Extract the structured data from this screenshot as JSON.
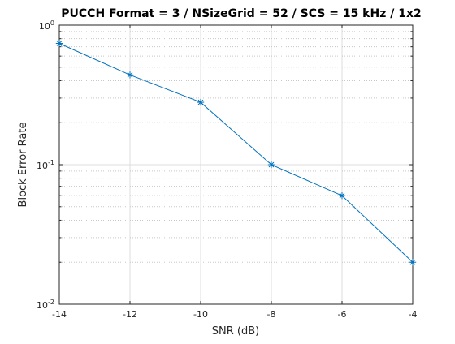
{
  "chart_data": {
    "type": "line",
    "title": "PUCCH Format = 3 / NSizeGrid = 52 / SCS = 15 kHz / 1x2",
    "xlabel": "SNR (dB)",
    "ylabel": "Block Error Rate",
    "xlim": [
      -14,
      -4
    ],
    "ylim": [
      0.01,
      1
    ],
    "yscale": "log",
    "grid": true,
    "x_ticks": [
      "-14",
      "-12",
      "-10",
      "-8",
      "-6",
      "-4"
    ],
    "y_ticks": [
      {
        "base": "10",
        "exp": "0"
      },
      {
        "base": "10",
        "exp": "-1"
      },
      {
        "base": "10",
        "exp": "-2"
      }
    ],
    "series": [
      {
        "marker": "asterisk",
        "color": "#0072bd",
        "x": [
          -14,
          -12,
          -10,
          -8,
          -6,
          -4
        ],
        "y": [
          0.74,
          0.44,
          0.28,
          0.1,
          0.06,
          0.02
        ]
      }
    ]
  }
}
